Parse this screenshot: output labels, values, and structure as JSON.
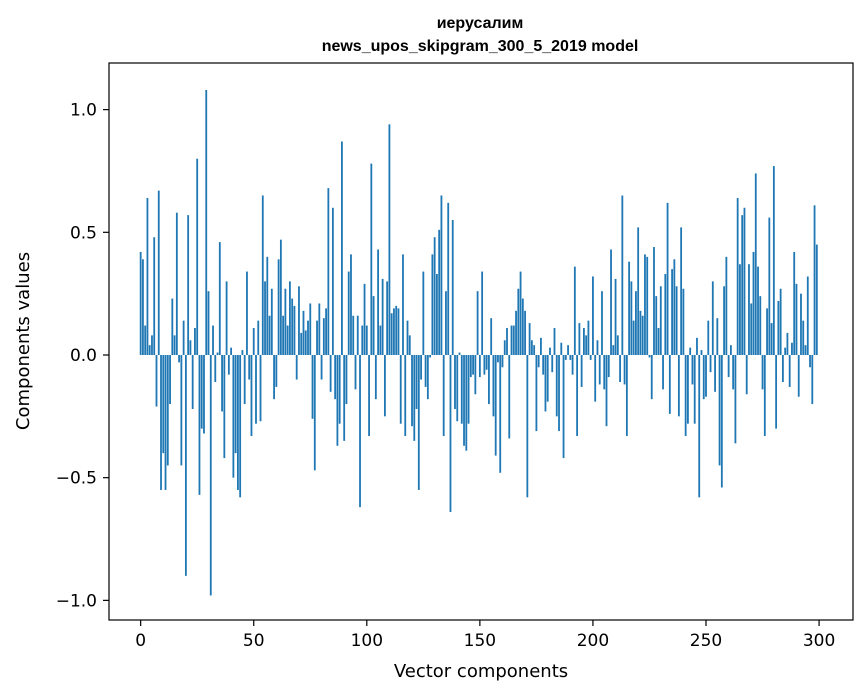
{
  "chart_data": {
    "type": "bar",
    "title": "иерусалим",
    "subtitle": "news_upos_skipgram_300_5_2019 model",
    "xlabel": "Vector components",
    "ylabel": "Components values",
    "xlim": [
      -14,
      315
    ],
    "ylim": [
      -1.08,
      1.19
    ],
    "xticks": [
      0,
      50,
      100,
      150,
      200,
      250,
      300
    ],
    "yticks": [
      -1.0,
      -0.5,
      0.0,
      0.5,
      1.0
    ],
    "xtick_labels": [
      "0",
      "50",
      "100",
      "150",
      "200",
      "250",
      "300"
    ],
    "ytick_labels": [
      "−1.0",
      "−0.5",
      "0.0",
      "0.5",
      "1.0"
    ],
    "grid": false,
    "bar_color": "#1f77b4",
    "values": [
      0.42,
      0.39,
      0.12,
      0.64,
      0.04,
      0.08,
      0.48,
      -0.21,
      0.67,
      -0.55,
      -0.4,
      -0.55,
      -0.45,
      -0.2,
      0.23,
      0.08,
      0.58,
      -0.03,
      -0.45,
      0.14,
      -0.9,
      0.57,
      0.06,
      -0.22,
      0.11,
      0.8,
      -0.57,
      -0.3,
      -0.32,
      1.08,
      0.26,
      -0.98,
      0.12,
      -0.11,
      0.01,
      0.46,
      -0.23,
      -0.42,
      0.3,
      -0.08,
      0.03,
      -0.5,
      -0.4,
      -0.55,
      -0.58,
      0.02,
      -0.2,
      0.34,
      -0.1,
      -0.33,
      0.11,
      -0.28,
      0.14,
      -0.27,
      0.65,
      0.3,
      0.4,
      0.16,
      0.27,
      -0.18,
      -0.13,
      0.39,
      0.47,
      0.16,
      0.27,
      0.12,
      0.3,
      0.23,
      0.2,
      -0.1,
      0.28,
      0.09,
      0.18,
      0.1,
      0.14,
      0.21,
      -0.26,
      -0.47,
      0.14,
      0.21,
      -0.1,
      0.15,
      0.19,
      0.68,
      -0.15,
      0.6,
      -0.18,
      -0.37,
      -0.28,
      0.87,
      -0.35,
      -0.2,
      0.34,
      0.41,
      0.16,
      -0.14,
      0.16,
      -0.62,
      0.12,
      0.29,
      0.12,
      -0.33,
      0.78,
      0.24,
      -0.18,
      0.43,
      0.12,
      0.31,
      -0.25,
      0.3,
      0.94,
      0.17,
      0.19,
      0.2,
      0.19,
      -0.28,
      0.41,
      -0.33,
      0.14,
      0.08,
      -0.29,
      -0.35,
      -0.22,
      -0.55,
      -0.1,
      0.34,
      -0.13,
      -0.18,
      -0.01,
      0.41,
      0.48,
      0.33,
      0.51,
      0.65,
      -0.33,
      0.26,
      0.62,
      -0.64,
      0.55,
      -0.22,
      -0.27,
      0.01,
      -0.28,
      -0.37,
      -0.39,
      -0.28,
      -0.09,
      -0.08,
      -0.16,
      0.26,
      -0.09,
      0.34,
      -0.08,
      -0.06,
      -0.2,
      0.15,
      -0.25,
      -0.41,
      -0.03,
      -0.48,
      -0.05,
      0.06,
      0.11,
      -0.34,
      0.12,
      0.12,
      0.18,
      0.27,
      0.34,
      0.23,
      0.18,
      -0.58,
      0.13,
      0.06,
      0.04,
      -0.31,
      -0.05,
      0.07,
      -0.08,
      -0.23,
      -0.19,
      0.03,
      -0.07,
      0.11,
      -0.25,
      -0.31,
      0.05,
      -0.42,
      -0.02,
      0.04,
      -0.02,
      -0.08,
      0.36,
      -0.33,
      0.13,
      -0.13,
      0.11,
      0.08,
      0.14,
      -0.02,
      0.32,
      -0.19,
      0.06,
      -0.12,
      0.26,
      -0.14,
      -0.29,
      -0.09,
      0.43,
      0.04,
      0.31,
      0.08,
      -0.11,
      0.65,
      -0.12,
      -0.33,
      0.38,
      0.3,
      0.14,
      0.26,
      0.52,
      0.18,
      0.16,
      0.41,
      0.4,
      -0.01,
      -0.18,
      0.44,
      0.24,
      0.11,
      0.28,
      -0.14,
      0.33,
      0.62,
      -0.24,
      0.35,
      0.39,
      0.28,
      -0.25,
      0.52,
      0.27,
      -0.33,
      -0.28,
      0.03,
      -0.12,
      -0.28,
      0.07,
      -0.58,
      0.02,
      -0.18,
      -0.17,
      0.14,
      -0.07,
      0.3,
      -0.15,
      0.15,
      -0.45,
      -0.54,
      0.28,
      0.4,
      -0.09,
      0.04,
      -0.14,
      -0.36,
      0.64,
      0.37,
      0.57,
      0.6,
      -0.16,
      0.37,
      0.21,
      0.42,
      0.74,
      0.36,
      0.24,
      -0.14,
      -0.33,
      0.19,
      0.56,
      0.13,
      0.77,
      -0.3,
      0.22,
      0.27,
      -0.11,
      0.03,
      0.09,
      -0.13,
      0.05,
      0.42,
      0.29,
      -0.17,
      0.25,
      0.14,
      0.04,
      0.32,
      -0.05,
      -0.2,
      0.61,
      0.45
    ]
  }
}
